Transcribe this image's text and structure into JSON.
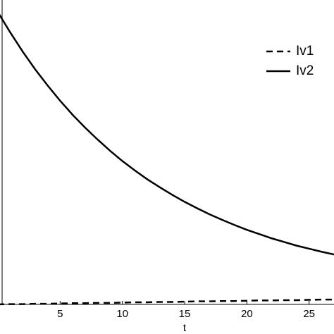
{
  "chart_data": {
    "type": "line",
    "x_label": "t",
    "x": [
      0,
      1,
      2,
      3,
      4,
      5,
      6,
      7,
      8,
      9,
      10,
      11,
      12,
      13,
      14,
      15,
      16,
      17,
      18,
      19,
      20,
      21,
      22,
      23,
      24,
      25,
      26,
      27
    ],
    "series": [
      {
        "name": "Iv1",
        "color": "#000000",
        "dash": true,
        "values": [
          0,
          0.001,
          0.001,
          0.002,
          0.002,
          0.003,
          0.004,
          0.004,
          0.005,
          0.005,
          0.006,
          0.007,
          0.007,
          0.008,
          0.008,
          0.009,
          0.01,
          0.01,
          0.011,
          0.011,
          0.012,
          0.013,
          0.013,
          0.014,
          0.014,
          0.015,
          0.016,
          0.016
        ]
      },
      {
        "name": "Iv2",
        "color": "#000000",
        "dash": false,
        "values": [
          0.96,
          0.893,
          0.83,
          0.772,
          0.719,
          0.669,
          0.623,
          0.581,
          0.542,
          0.505,
          0.471,
          0.44,
          0.411,
          0.385,
          0.36,
          0.337,
          0.316,
          0.296,
          0.278,
          0.261,
          0.245,
          0.231,
          0.217,
          0.205,
          0.193,
          0.183,
          0.173,
          0.164
        ]
      }
    ],
    "xlim": [
      0,
      27
    ],
    "ylim": [
      0,
      1
    ],
    "xticks": [
      5,
      10,
      15,
      20,
      25
    ],
    "legend": "upper right"
  }
}
